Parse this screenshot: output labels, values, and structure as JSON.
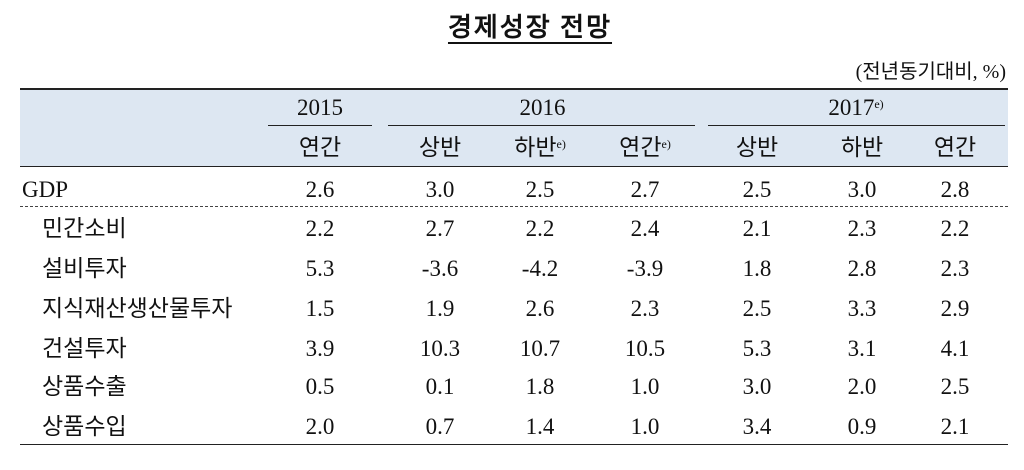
{
  "title": "경제성장 전망",
  "unit": "(전년동기대비, %)",
  "years": [
    {
      "text": "2015"
    },
    {
      "text": "2016"
    },
    {
      "text": "2017",
      "sup": "e)"
    }
  ],
  "periods": [
    {
      "text": "연간"
    },
    {
      "text": "상반"
    },
    {
      "text": "하반",
      "sup": "e)"
    },
    {
      "text": "연간",
      "sup": "e)"
    },
    {
      "text": "상반"
    },
    {
      "text": "하반"
    },
    {
      "text": "연간"
    }
  ],
  "rows": [
    {
      "label": "GDP",
      "values": [
        "2.6",
        "3.0",
        "2.5",
        "2.7",
        "2.5",
        "3.0",
        "2.8"
      ]
    },
    {
      "label": "민간소비",
      "values": [
        "2.2",
        "2.7",
        "2.2",
        "2.4",
        "2.1",
        "2.3",
        "2.2"
      ]
    },
    {
      "label": "설비투자",
      "values": [
        "5.3",
        "-3.6",
        "-4.2",
        "-3.9",
        "1.8",
        "2.8",
        "2.3"
      ]
    },
    {
      "label": "지식재산생산물투자",
      "values": [
        "1.5",
        "1.9",
        "2.6",
        "2.3",
        "2.5",
        "3.3",
        "2.9"
      ]
    },
    {
      "label": "건설투자",
      "values": [
        "3.9",
        "10.3",
        "10.7",
        "10.5",
        "5.3",
        "3.1",
        "4.1"
      ]
    },
    {
      "label": "상품수출",
      "values": [
        "0.5",
        "0.1",
        "1.8",
        "1.0",
        "3.0",
        "2.0",
        "2.5"
      ]
    },
    {
      "label": "상품수입",
      "values": [
        "2.0",
        "0.7",
        "1.4",
        "1.0",
        "3.4",
        "0.9",
        "2.1"
      ]
    }
  ]
}
